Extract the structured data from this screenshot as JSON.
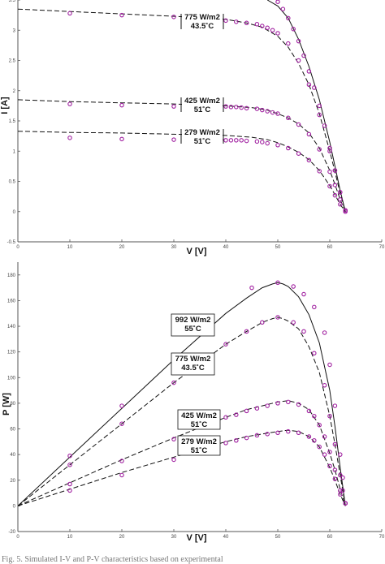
{
  "chart_data": [
    {
      "type": "line",
      "xlabel": "V [V]",
      "ylabel": "I [A]",
      "xlim": [
        0,
        70
      ],
      "ylim": [
        -0.5,
        3.5
      ],
      "xticks": [
        0,
        10,
        20,
        30,
        40,
        50,
        60,
        70
      ],
      "yticks": [
        {
          "value": -0.5,
          "label": "-0.5"
        },
        {
          "value": 0,
          "label": "0"
        },
        {
          "value": 0.5,
          "label": "0.5"
        },
        {
          "value": 1,
          "label": "1"
        },
        {
          "value": 1.5,
          "label": "1.5"
        },
        {
          "value": 2,
          "label": "2"
        },
        {
          "value": 2.5,
          "label": "2.5"
        },
        {
          "value": 3,
          "label": "3"
        },
        {
          "value": 3.5,
          "label": "3.5"
        }
      ],
      "grid": false,
      "series": [
        {
          "style": "solid",
          "color": "#111111",
          "x": [
            48,
            50,
            52,
            54,
            56,
            58,
            60,
            61,
            62,
            63
          ],
          "y": [
            3.5,
            3.4,
            3.2,
            2.85,
            2.4,
            1.85,
            1.15,
            0.75,
            0.35,
            0
          ]
        },
        {
          "style": "dashed",
          "color": "#111111",
          "x": [
            0,
            10,
            20,
            30,
            40,
            44,
            47,
            50,
            52,
            54,
            56,
            58,
            60,
            61,
            62,
            63
          ],
          "y": [
            3.35,
            3.31,
            3.27,
            3.23,
            3.18,
            3.12,
            3.05,
            2.9,
            2.72,
            2.45,
            2.1,
            1.62,
            1.0,
            0.66,
            0.3,
            0
          ]
        },
        {
          "style": "dashed",
          "color": "#111111",
          "x": [
            0,
            10,
            20,
            30,
            40,
            45,
            48,
            50,
            52,
            54,
            56,
            58,
            60,
            61,
            62,
            63
          ],
          "y": [
            1.85,
            1.82,
            1.8,
            1.78,
            1.75,
            1.72,
            1.68,
            1.62,
            1.55,
            1.45,
            1.3,
            1.05,
            0.68,
            0.45,
            0.2,
            0
          ]
        },
        {
          "style": "dashed",
          "color": "#111111",
          "x": [
            0,
            10,
            20,
            30,
            40,
            45,
            48,
            50,
            52,
            54,
            56,
            58,
            60,
            61,
            62,
            63
          ],
          "y": [
            1.33,
            1.31,
            1.3,
            1.28,
            1.26,
            1.23,
            1.19,
            1.14,
            1.07,
            0.98,
            0.86,
            0.68,
            0.43,
            0.28,
            0.12,
            0
          ]
        },
        {
          "style": "markers",
          "color": "#a020a0",
          "x": [
            50,
            51,
            52,
            53,
            54,
            55,
            56,
            57,
            58,
            59,
            60,
            61,
            62,
            63
          ],
          "y": [
            3.47,
            3.35,
            3.2,
            3.02,
            2.82,
            2.58,
            2.32,
            2.05,
            1.75,
            1.42,
            1.05,
            0.68,
            0.32,
            0
          ]
        },
        {
          "style": "markers",
          "color": "#a020a0",
          "x": [
            10,
            20,
            30,
            36,
            38,
            40,
            42,
            44,
            46,
            47,
            48,
            49,
            50,
            52,
            54,
            56,
            58,
            60,
            61,
            62,
            63
          ],
          "y": [
            3.28,
            3.25,
            3.22,
            3.2,
            3.18,
            3.16,
            3.14,
            3.12,
            3.1,
            3.07,
            3.04,
            3.0,
            2.95,
            2.78,
            2.5,
            2.1,
            1.6,
            1.0,
            0.68,
            0.32,
            0.02
          ]
        },
        {
          "style": "markers",
          "color": "#a020a0",
          "x": [
            10,
            20,
            30,
            40,
            41,
            42,
            43,
            44,
            46,
            47,
            48,
            49,
            50,
            52,
            54,
            56,
            58,
            60,
            61,
            62,
            63
          ],
          "y": [
            1.78,
            1.76,
            1.74,
            1.74,
            1.73,
            1.73,
            1.72,
            1.71,
            1.7,
            1.68,
            1.66,
            1.64,
            1.62,
            1.55,
            1.44,
            1.28,
            1.03,
            0.66,
            0.44,
            0.2,
            0.02
          ]
        },
        {
          "style": "markers",
          "color": "#a020a0",
          "x": [
            10,
            20,
            30,
            37,
            39,
            40,
            41,
            42,
            43,
            44,
            46,
            47,
            48,
            50,
            52,
            54,
            56,
            58,
            60,
            61,
            62,
            63
          ],
          "y": [
            1.22,
            1.2,
            1.19,
            1.19,
            1.19,
            1.18,
            1.18,
            1.18,
            1.18,
            1.17,
            1.16,
            1.15,
            1.13,
            1.1,
            1.05,
            0.96,
            0.85,
            0.67,
            0.42,
            0.27,
            0.12,
            0.02
          ]
        }
      ],
      "annotations": [
        {
          "lines": [
            "775 W/m2",
            "43.5˚C"
          ]
        },
        {
          "lines": [
            "425 W/m2",
            "51˚C"
          ]
        },
        {
          "lines": [
            "279 W/m2",
            "51˚C"
          ]
        }
      ]
    },
    {
      "type": "line",
      "xlabel": "V [V]",
      "ylabel": "P [W]",
      "xlim": [
        0,
        70
      ],
      "ylim": [
        -20,
        190
      ],
      "xticks": [
        0,
        10,
        20,
        30,
        40,
        50,
        60,
        70
      ],
      "yticks": [
        {
          "value": -20,
          "label": "-20"
        },
        {
          "value": 0,
          "label": "0"
        },
        {
          "value": 20,
          "label": "20"
        },
        {
          "value": 40,
          "label": "40"
        },
        {
          "value": 60,
          "label": "60"
        },
        {
          "value": 80,
          "label": "80"
        },
        {
          "value": 100,
          "label": "100"
        },
        {
          "value": 120,
          "label": "120"
        },
        {
          "value": 140,
          "label": "140"
        },
        {
          "value": 160,
          "label": "160"
        },
        {
          "value": 180,
          "label": "180"
        }
      ],
      "grid": false,
      "series": [
        {
          "style": "solid",
          "color": "#111111",
          "x": [
            0,
            10,
            20,
            30,
            40,
            44,
            47,
            49,
            50,
            51,
            52,
            54,
            56,
            58,
            60,
            61,
            62,
            63
          ],
          "y": [
            0,
            38,
            76,
            114,
            150,
            162,
            170,
            173,
            174,
            173,
            171,
            163,
            149,
            127,
            90,
            62,
            30,
            0
          ]
        },
        {
          "style": "dashed",
          "color": "#111111",
          "x": [
            0,
            10,
            20,
            30,
            40,
            44,
            47,
            49,
            50,
            51,
            52,
            54,
            56,
            58,
            60,
            61,
            62,
            63
          ],
          "y": [
            0,
            32,
            64,
            96,
            126,
            136,
            143,
            146,
            147,
            146,
            144,
            138,
            124,
            104,
            70,
            48,
            24,
            0
          ]
        },
        {
          "style": "dashed",
          "color": "#111111",
          "x": [
            0,
            10,
            20,
            30,
            40,
            44,
            47,
            50,
            52,
            54,
            56,
            58,
            60,
            61,
            62,
            63
          ],
          "y": [
            0,
            18,
            36,
            53,
            69,
            75,
            78,
            81,
            82,
            80,
            75,
            63,
            41,
            28,
            13,
            0
          ]
        },
        {
          "style": "dashed",
          "color": "#111111",
          "x": [
            0,
            10,
            20,
            30,
            40,
            44,
            47,
            50,
            52,
            54,
            56,
            58,
            60,
            61,
            62,
            63
          ],
          "y": [
            0,
            13,
            26,
            38,
            50,
            54,
            56,
            58,
            59,
            58,
            54,
            46,
            30,
            20,
            9,
            0
          ]
        },
        {
          "style": "markers",
          "color": "#a020a0",
          "x": [
            10,
            20,
            30,
            45,
            50,
            53,
            55,
            57,
            59,
            60,
            61,
            62,
            62.5,
            63
          ],
          "y": [
            39,
            78,
            117,
            170,
            174,
            171,
            165,
            155,
            135,
            110,
            78,
            40,
            22,
            2
          ]
        },
        {
          "style": "markers",
          "color": "#a020a0",
          "x": [
            10,
            20,
            30,
            40,
            44,
            47,
            50,
            53,
            55,
            57,
            59,
            60,
            61,
            62,
            62.5,
            63
          ],
          "y": [
            32,
            64,
            96,
            126,
            136,
            143,
            147,
            143,
            136,
            119,
            94,
            70,
            48,
            24,
            12,
            2
          ]
        },
        {
          "style": "markers",
          "color": "#a020a0",
          "x": [
            10,
            20,
            30,
            38,
            40,
            42,
            44,
            46,
            48,
            50,
            52,
            54,
            56,
            57,
            58,
            59,
            60,
            61,
            62,
            63
          ],
          "y": [
            17,
            35,
            52,
            66,
            69,
            71,
            74,
            76,
            78,
            80,
            81,
            79,
            74,
            70,
            63,
            54,
            42,
            28,
            12,
            2
          ]
        },
        {
          "style": "markers",
          "color": "#a020a0",
          "x": [
            10,
            20,
            30,
            38,
            40,
            42,
            44,
            46,
            48,
            50,
            52,
            54,
            56,
            57,
            58,
            59,
            60,
            61,
            62,
            63
          ],
          "y": [
            12,
            24,
            36,
            47,
            49,
            51,
            53,
            55,
            56,
            57,
            58,
            57,
            54,
            51,
            46,
            40,
            31,
            21,
            9,
            2
          ]
        }
      ],
      "annotations": [
        {
          "lines": [
            "992 W/m2",
            "55˚C"
          ]
        },
        {
          "lines": [
            "775 W/m2",
            "43.5˚C"
          ]
        },
        {
          "lines": [
            "425 W/m2",
            "51˚C"
          ]
        },
        {
          "lines": [
            "279 W/m2",
            "51˚C"
          ]
        }
      ]
    }
  ],
  "caption": "Fig. 5.  Simulated I-V and P-V characteristics based on experimental"
}
